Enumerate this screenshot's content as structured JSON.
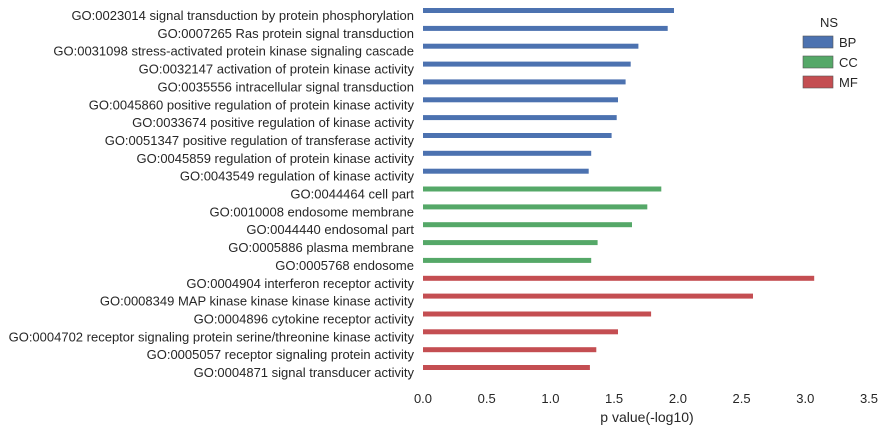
{
  "chart_data": {
    "type": "bar",
    "orientation": "horizontal",
    "title": "",
    "xlabel": "p value(-log10)",
    "ylabel": "",
    "xlim": [
      0,
      3.5
    ],
    "xticks": [
      "0.0",
      "0.5",
      "1.0",
      "1.5",
      "2.0",
      "2.5",
      "3.0",
      "3.5"
    ],
    "grid": false,
    "legend": {
      "title": "NS",
      "placement": "top-right",
      "entries": [
        {
          "name": "BP",
          "color": "#4c72b0"
        },
        {
          "name": "CC",
          "color": "#55a868"
        },
        {
          "name": "MF",
          "color": "#c44e52"
        }
      ]
    },
    "bars": [
      {
        "label": "GO:0023014 signal transduction by protein phosphorylation",
        "value": 1.97,
        "group": "BP"
      },
      {
        "label": "GO:0007265 Ras protein signal transduction",
        "value": 1.92,
        "group": "BP"
      },
      {
        "label": "GO:0031098 stress-activated protein kinase signaling cascade",
        "value": 1.69,
        "group": "BP"
      },
      {
        "label": "GO:0032147 activation of protein kinase activity",
        "value": 1.63,
        "group": "BP"
      },
      {
        "label": "GO:0035556 intracellular signal transduction",
        "value": 1.59,
        "group": "BP"
      },
      {
        "label": "GO:0045860 positive regulation of protein kinase activity",
        "value": 1.53,
        "group": "BP"
      },
      {
        "label": "GO:0033674 positive regulation of kinase activity",
        "value": 1.52,
        "group": "BP"
      },
      {
        "label": "GO:0051347 positive regulation of transferase activity",
        "value": 1.48,
        "group": "BP"
      },
      {
        "label": "GO:0045859 regulation of protein kinase activity",
        "value": 1.32,
        "group": "BP"
      },
      {
        "label": "GO:0043549 regulation of kinase activity",
        "value": 1.3,
        "group": "BP"
      },
      {
        "label": "GO:0044464 cell part",
        "value": 1.87,
        "group": "CC"
      },
      {
        "label": "GO:0010008 endosome membrane",
        "value": 1.76,
        "group": "CC"
      },
      {
        "label": "GO:0044440 endosomal part",
        "value": 1.64,
        "group": "CC"
      },
      {
        "label": "GO:0005886 plasma membrane",
        "value": 1.37,
        "group": "CC"
      },
      {
        "label": "GO:0005768 endosome",
        "value": 1.32,
        "group": "CC"
      },
      {
        "label": "GO:0004904 interferon receptor activity",
        "value": 3.07,
        "group": "MF"
      },
      {
        "label": "GO:0008349 MAP kinase kinase kinase kinase activity",
        "value": 2.59,
        "group": "MF"
      },
      {
        "label": "GO:0004896 cytokine receptor activity",
        "value": 1.79,
        "group": "MF"
      },
      {
        "label": "GO:0004702 receptor signaling protein serine/threonine kinase activity",
        "value": 1.53,
        "group": "MF"
      },
      {
        "label": "GO:0005057 receptor signaling protein activity",
        "value": 1.36,
        "group": "MF"
      },
      {
        "label": "GO:0004871 signal transducer activity",
        "value": 1.31,
        "group": "MF"
      }
    ]
  }
}
